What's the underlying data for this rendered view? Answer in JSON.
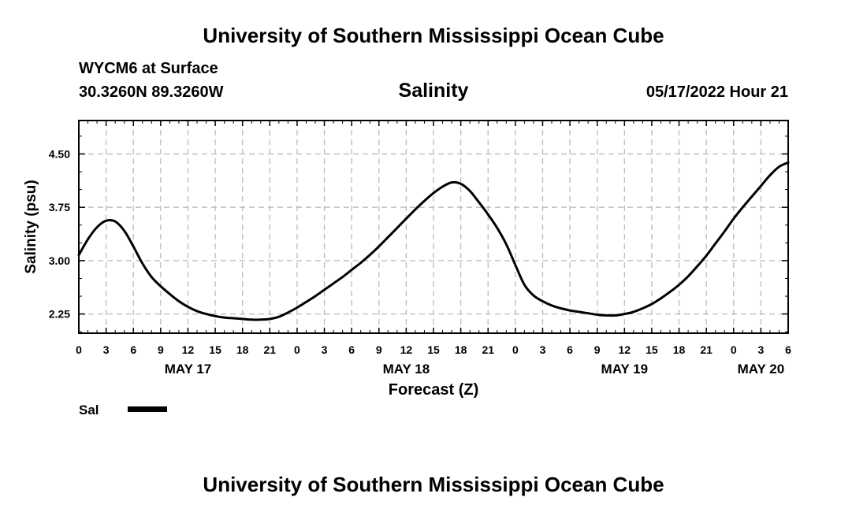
{
  "header": {
    "title": "University of Southern Mississippi Ocean Cube",
    "station": "WYCM6 at Surface",
    "coords": "30.3260N  89.3260W",
    "chart_title": "Salinity",
    "datetime": "05/17/2022 Hour 21"
  },
  "footer": {
    "title": "University of Southern Mississippi Ocean Cube"
  },
  "colors": {
    "line": "#000000",
    "grid": "#bbbbbb",
    "background": "#ffffff"
  },
  "chart_data": {
    "type": "line",
    "title": "Salinity",
    "xlabel": "Forecast (Z)",
    "ylabel": "Salinity (psu)",
    "xlim": [
      0,
      78
    ],
    "ylim": [
      1.98,
      4.97
    ],
    "yticks": [
      2.25,
      3.0,
      3.75,
      4.5
    ],
    "ytick_labels": [
      "2.25",
      "3.00",
      "3.75",
      "4.50"
    ],
    "xtick_labels": [
      "0",
      "3",
      "6",
      "9",
      "12",
      "15",
      "18",
      "21",
      "0",
      "3",
      "6",
      "9",
      "12",
      "15",
      "18",
      "21",
      "0",
      "3",
      "6",
      "9",
      "12",
      "15",
      "18",
      "21",
      "0",
      "3",
      "6"
    ],
    "date_labels": [
      {
        "x": 12,
        "label": "MAY 17"
      },
      {
        "x": 36,
        "label": "MAY 18"
      },
      {
        "x": 60,
        "label": "MAY 19"
      },
      {
        "x": 75,
        "label": "MAY 20"
      }
    ],
    "grid": true,
    "series": [
      {
        "name": "Sal",
        "x": [
          0,
          1,
          2,
          3,
          4,
          5,
          6,
          7,
          8,
          9,
          10,
          11,
          12,
          13,
          14,
          15,
          16,
          17,
          18,
          19,
          20,
          21,
          22,
          23,
          24,
          25,
          26,
          27,
          28,
          29,
          30,
          31,
          32,
          33,
          34,
          35,
          36,
          37,
          38,
          39,
          40,
          41,
          42,
          43,
          44,
          45,
          46,
          47,
          48,
          49,
          50,
          51,
          52,
          53,
          54,
          55,
          56,
          57,
          58,
          59,
          60,
          61,
          62,
          63,
          64,
          65,
          66,
          67,
          68,
          69,
          70,
          71,
          72,
          73,
          74,
          75,
          76,
          77,
          78
        ],
        "values": [
          3.08,
          3.3,
          3.47,
          3.56,
          3.55,
          3.42,
          3.2,
          2.96,
          2.77,
          2.64,
          2.53,
          2.43,
          2.35,
          2.29,
          2.25,
          2.22,
          2.2,
          2.19,
          2.18,
          2.17,
          2.17,
          2.18,
          2.21,
          2.27,
          2.34,
          2.42,
          2.5,
          2.59,
          2.68,
          2.77,
          2.87,
          2.97,
          3.08,
          3.2,
          3.33,
          3.46,
          3.59,
          3.72,
          3.84,
          3.95,
          4.04,
          4.1,
          4.08,
          3.98,
          3.82,
          3.65,
          3.46,
          3.23,
          2.94,
          2.66,
          2.51,
          2.43,
          2.37,
          2.33,
          2.3,
          2.28,
          2.26,
          2.24,
          2.23,
          2.23,
          2.25,
          2.28,
          2.33,
          2.39,
          2.47,
          2.56,
          2.66,
          2.78,
          2.92,
          3.07,
          3.24,
          3.41,
          3.59,
          3.75,
          3.9,
          4.05,
          4.2,
          4.32,
          4.38
        ]
      }
    ],
    "legend": [
      {
        "label": "Sal",
        "position": "bottom-left"
      }
    ]
  }
}
